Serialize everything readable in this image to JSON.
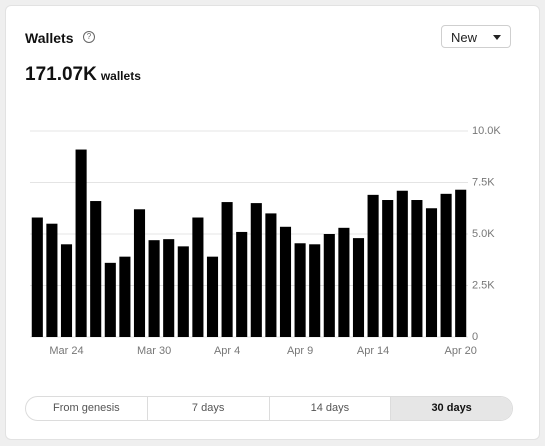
{
  "header": {
    "title": "Wallets",
    "total": "171.07K",
    "unit": "wallets",
    "dropdown": "New"
  },
  "tabs": [
    "From genesis",
    "7 days",
    "14 days",
    "30 days"
  ],
  "chart_data": {
    "type": "bar",
    "color": "#000000",
    "grid": true,
    "categories": [
      null,
      null,
      "Mar 24",
      null,
      null,
      null,
      null,
      null,
      "Mar 30",
      null,
      null,
      null,
      null,
      "Apr 4",
      null,
      null,
      null,
      null,
      "Apr 9",
      null,
      null,
      null,
      null,
      "Apr 14",
      null,
      null,
      null,
      null,
      null,
      "Apr 20"
    ],
    "values": [
      5800,
      5500,
      4500,
      9100,
      6600,
      3600,
      3900,
      6200,
      4700,
      4750,
      4400,
      5800,
      3900,
      6550,
      5100,
      6500,
      6000,
      5350,
      4550,
      4500,
      5000,
      5300,
      4800,
      6900,
      6650,
      7100,
      6650,
      6250,
      6950,
      7150
    ],
    "ylim": [
      0,
      10000
    ],
    "yticks": [
      0,
      {
        "value": 2500,
        "label": "2.5K"
      },
      {
        "value": 5000,
        "label": "5.0K"
      },
      {
        "value": 7500,
        "label": "7.5K"
      },
      {
        "value": 10000,
        "label": "10.0K"
      }
    ]
  }
}
